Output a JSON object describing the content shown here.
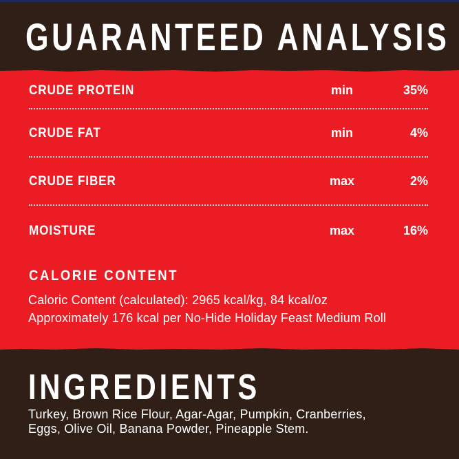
{
  "analysis": {
    "title": "GUARANTEED ANALYSIS",
    "rows": [
      {
        "label": "CRUDE PROTEIN",
        "qualifier": "min",
        "value": "35%"
      },
      {
        "label": "CRUDE FAT",
        "qualifier": "min",
        "value": "4%"
      },
      {
        "label": "CRUDE FIBER",
        "qualifier": "max",
        "value": "2%"
      },
      {
        "label": "MOISTURE",
        "qualifier": "max",
        "value": "16%"
      }
    ]
  },
  "calorie": {
    "heading": "CALORIE CONTENT",
    "line1": "Caloric Content (calculated): 2965 kcal/kg, 84 kcal/oz",
    "line2": "Approximately 176 kcal per No-Hide Holiday Feast Medium Roll"
  },
  "ingredients": {
    "heading": "INGREDIENTS",
    "line1": "Turkey, Brown Rice Flour, Agar-Agar, Pumpkin, Cranberries,",
    "line2": "Eggs, Olive Oil, Banana Powder, Pineapple Stem."
  },
  "colors": {
    "brown": "#2f1f17",
    "red": "#ec1c24",
    "text": "#ffffff"
  }
}
